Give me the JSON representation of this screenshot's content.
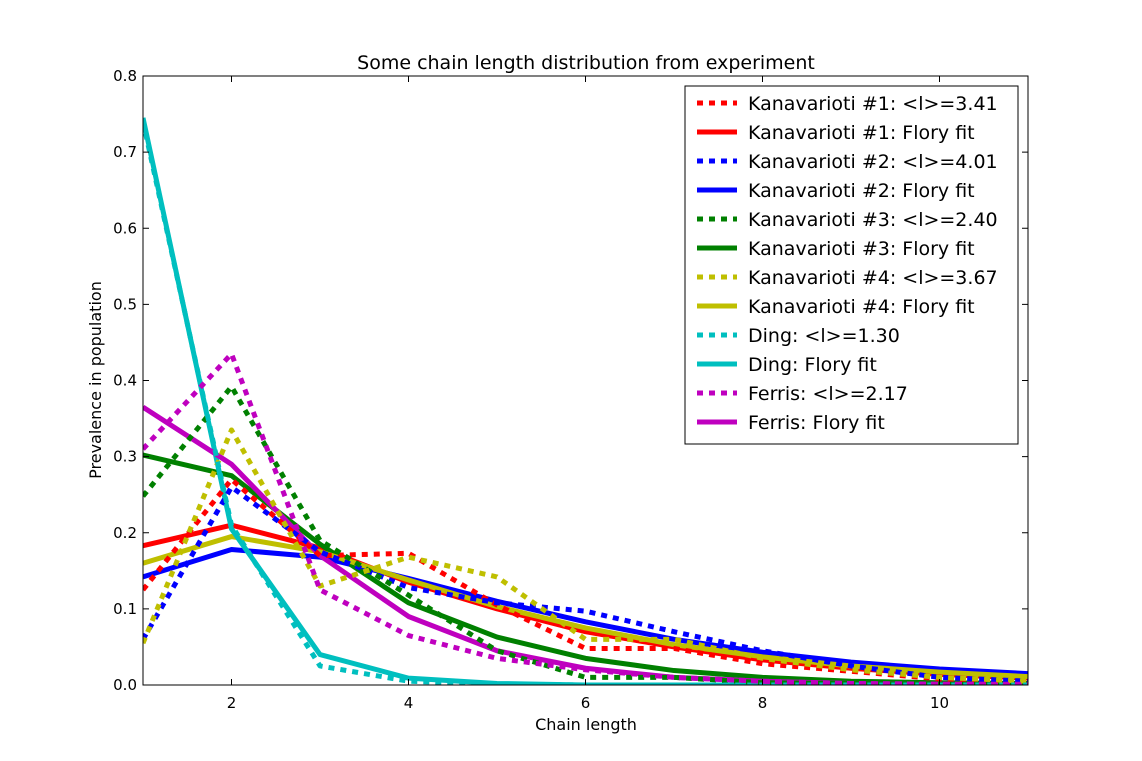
{
  "chart_data": {
    "type": "line",
    "title": "Some chain length distribution from experiment",
    "xlabel": "Chain length",
    "ylabel": "Prevalence in population",
    "xlim": [
      1,
      11
    ],
    "ylim": [
      0,
      0.8
    ],
    "xticks": [
      2,
      4,
      6,
      8,
      10
    ],
    "yticks": [
      0.0,
      0.1,
      0.2,
      0.3,
      0.4,
      0.5,
      0.6,
      0.7,
      0.8
    ],
    "grid": false,
    "legend_position": "top-right",
    "series": [
      {
        "name": "Kanavarioti #1: <l>=3.41",
        "color": "#ff0000",
        "style": "dashed",
        "x": [
          1,
          2,
          3,
          4,
          5,
          6,
          7,
          8,
          9,
          10,
          11
        ],
        "y": [
          0.125,
          0.27,
          0.17,
          0.173,
          0.105,
          0.048,
          0.048,
          0.028,
          0.018,
          0.008,
          0.005
        ]
      },
      {
        "name": "Kanavarioti #1: Flory fit",
        "color": "#ff0000",
        "style": "solid",
        "x": [
          1,
          2,
          3,
          4,
          5,
          6,
          7,
          8,
          9,
          10,
          11
        ],
        "y": [
          0.183,
          0.21,
          0.18,
          0.135,
          0.1,
          0.07,
          0.05,
          0.033,
          0.022,
          0.014,
          0.009
        ]
      },
      {
        "name": "Kanavarioti #2: <l>=4.01",
        "color": "#0000ff",
        "style": "dashed",
        "x": [
          1,
          2,
          3,
          4,
          5,
          6,
          7,
          8,
          9,
          10,
          11
        ],
        "y": [
          0.06,
          0.26,
          0.175,
          0.128,
          0.108,
          0.097,
          0.07,
          0.045,
          0.025,
          0.01,
          0.005
        ]
      },
      {
        "name": "Kanavarioti #2: Flory fit",
        "color": "#0000ff",
        "style": "solid",
        "x": [
          1,
          2,
          3,
          4,
          5,
          6,
          7,
          8,
          9,
          10,
          11
        ],
        "y": [
          0.142,
          0.178,
          0.168,
          0.14,
          0.11,
          0.083,
          0.06,
          0.043,
          0.03,
          0.021,
          0.015
        ]
      },
      {
        "name": "Kanavarioti #3: <l>=2.40",
        "color": "#008000",
        "style": "dashed",
        "x": [
          1,
          2,
          3,
          4,
          5,
          6,
          7,
          8,
          9,
          10,
          11
        ],
        "y": [
          0.248,
          0.392,
          0.19,
          0.118,
          0.045,
          0.01,
          0.01,
          0.003,
          0.002,
          0.001,
          0.001
        ]
      },
      {
        "name": "Kanavarioti #3: Flory fit",
        "color": "#008000",
        "style": "solid",
        "x": [
          1,
          2,
          3,
          4,
          5,
          6,
          7,
          8,
          9,
          10,
          11
        ],
        "y": [
          0.302,
          0.275,
          0.185,
          0.108,
          0.063,
          0.035,
          0.019,
          0.01,
          0.005,
          0.003,
          0.002
        ]
      },
      {
        "name": "Kanavarioti #4: <l>=3.67",
        "color": "#bfbf00",
        "style": "dashed",
        "x": [
          1,
          2,
          3,
          4,
          5,
          6,
          7,
          8,
          9,
          10,
          11
        ],
        "y": [
          0.055,
          0.335,
          0.13,
          0.168,
          0.142,
          0.06,
          0.06,
          0.035,
          0.02,
          0.01,
          0.005
        ]
      },
      {
        "name": "Kanavarioti #4: Flory fit",
        "color": "#bfbf00",
        "style": "solid",
        "x": [
          1,
          2,
          3,
          4,
          5,
          6,
          7,
          8,
          9,
          10,
          11
        ],
        "y": [
          0.16,
          0.195,
          0.175,
          0.138,
          0.103,
          0.075,
          0.053,
          0.037,
          0.025,
          0.017,
          0.011
        ]
      },
      {
        "name": "Ding: <l>=1.30",
        "color": "#00bfbf",
        "style": "dashed",
        "x": [
          1,
          2,
          3,
          4,
          5,
          6,
          7,
          8,
          9,
          10,
          11
        ],
        "y": [
          0.74,
          0.21,
          0.025,
          0.005,
          0.001,
          0.0,
          0.0,
          0.0,
          0.0,
          0.0,
          0.0
        ]
      },
      {
        "name": "Ding: Flory fit",
        "color": "#00bfbf",
        "style": "solid",
        "x": [
          1,
          2,
          3,
          4,
          5,
          6,
          7,
          8,
          9,
          10,
          11
        ],
        "y": [
          0.745,
          0.205,
          0.04,
          0.009,
          0.002,
          0.0,
          0.0,
          0.0,
          0.0,
          0.0,
          0.0
        ]
      },
      {
        "name": "Ferris: <l>=2.17",
        "color": "#bf00bf",
        "style": "dashed",
        "x": [
          1,
          2,
          3,
          4,
          5,
          6,
          7,
          8,
          9,
          10,
          11
        ],
        "y": [
          0.31,
          0.435,
          0.125,
          0.065,
          0.035,
          0.02,
          0.01,
          0.005,
          0.002,
          0.001,
          0.001
        ]
      },
      {
        "name": "Ferris: Flory fit",
        "color": "#bf00bf",
        "style": "solid",
        "x": [
          1,
          2,
          3,
          4,
          5,
          6,
          7,
          8,
          9,
          10,
          11
        ],
        "y": [
          0.365,
          0.29,
          0.17,
          0.09,
          0.045,
          0.022,
          0.01,
          0.005,
          0.002,
          0.001,
          0.001
        ]
      }
    ]
  }
}
